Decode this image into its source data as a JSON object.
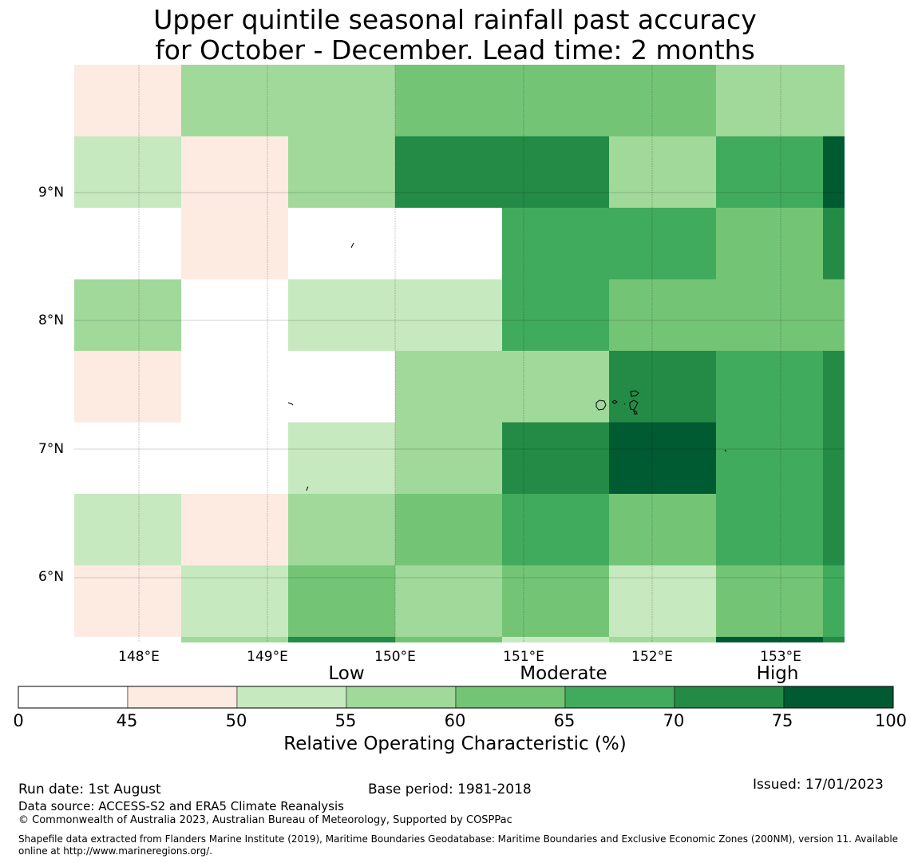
{
  "title_line1": "Upper quintile seasonal rainfall past accuracy",
  "title_line2": "for October - December. Lead time: 2 months",
  "colors": {
    "0": "#ffffff",
    "1": "#fdebe1",
    "2": "#c7e9c0",
    "3": "#a1d99b",
    "4": "#74c476",
    "5": "#41ab5d",
    "6": "#238b45",
    "7": "#005a32"
  },
  "latitude_ticks": [
    "9°N",
    "8°N",
    "7°N",
    "6°N"
  ],
  "longitude_ticks": [
    "148°E",
    "149°E",
    "150°E",
    "151°E",
    "152°E",
    "153°E"
  ],
  "grid": {
    "rows": [
      [
        1,
        3,
        3,
        4,
        4,
        4,
        3,
        3
      ],
      [
        2,
        1,
        3,
        6,
        6,
        3,
        5,
        7
      ],
      [
        0,
        1,
        0,
        0,
        5,
        5,
        4,
        6
      ],
      [
        3,
        0,
        2,
        2,
        5,
        4,
        4,
        4
      ],
      [
        1,
        0,
        0,
        3,
        3,
        6,
        5,
        6
      ],
      [
        0,
        0,
        2,
        3,
        6,
        7,
        5,
        6
      ],
      [
        2,
        1,
        3,
        4,
        5,
        4,
        5,
        6
      ],
      [
        1,
        2,
        4,
        3,
        4,
        2,
        4,
        5
      ],
      [
        0,
        3,
        6,
        4,
        2,
        3,
        7,
        6
      ]
    ]
  },
  "categories": [
    "Low",
    "Moderate",
    "High"
  ],
  "colorbar_ticks": [
    "0",
    "45",
    "50",
    "55",
    "60",
    "65",
    "70",
    "75",
    "100"
  ],
  "colorbar_label": "Relative Operating Characteristic (%)",
  "footer": {
    "run_date": "Run date: 1st August",
    "base_period": "Base period: 1981-2018",
    "issued": "Issued: 17/01/2023",
    "data_source": "Data source: ACCESS-S2 and ERA5 Climate Reanalysis",
    "copyright": "© Commonwealth of Australia 2023, Australian Bureau of Meteorology, Supported by COSPPac",
    "shapefile_line1": "Shapefile data extracted from Flanders Marine Institute (2019), Maritime Boundaries Geodatabase: Maritime Boundaries and Exclusive Economic Zones (200NM), version 11. Available",
    "shapefile_line2": "online at http://www.marineregions.org/."
  }
}
